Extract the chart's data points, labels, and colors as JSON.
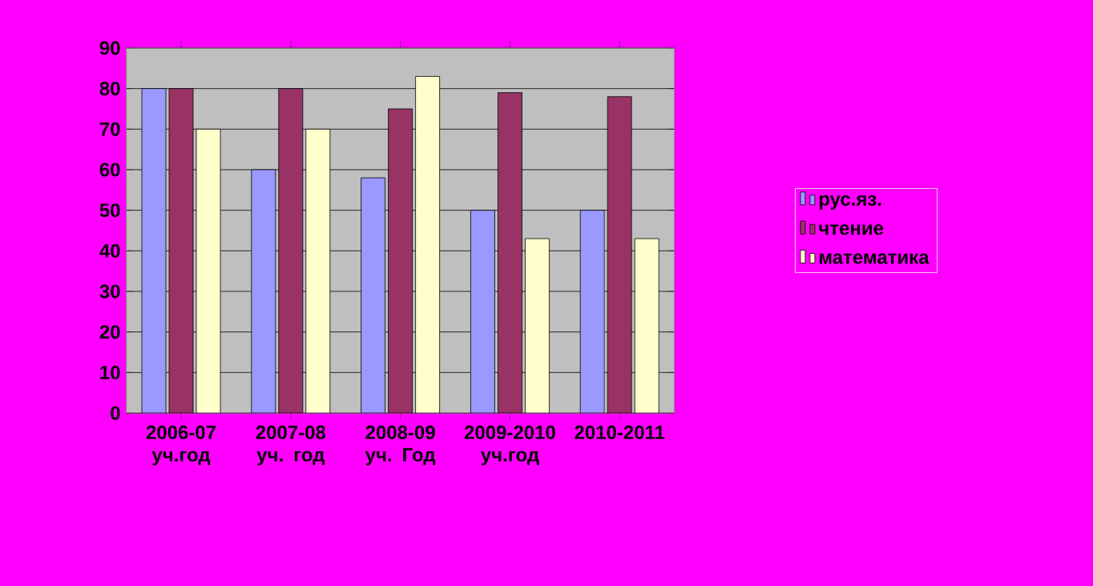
{
  "chart_data": {
    "type": "bar",
    "categories": [
      "2006-07 уч.год",
      "2007-08 уч. год",
      "2008-09 уч. Год",
      "2009-2010 уч.год",
      "2010-2011"
    ],
    "series": [
      {
        "name": "рус.яз.",
        "color": "#9999ff",
        "values": [
          80,
          60,
          58,
          50,
          50
        ]
      },
      {
        "name": "чтение",
        "color": "#993366",
        "values": [
          80,
          80,
          75,
          79,
          78
        ]
      },
      {
        "name": "математика",
        "color": "#ffffcc",
        "values": [
          70,
          70,
          83,
          43,
          43
        ]
      }
    ],
    "ylim": [
      0,
      90
    ],
    "yticks": [
      0,
      10,
      20,
      30,
      40,
      50,
      60,
      70,
      80,
      90
    ],
    "grid": "y",
    "legend": "right"
  }
}
